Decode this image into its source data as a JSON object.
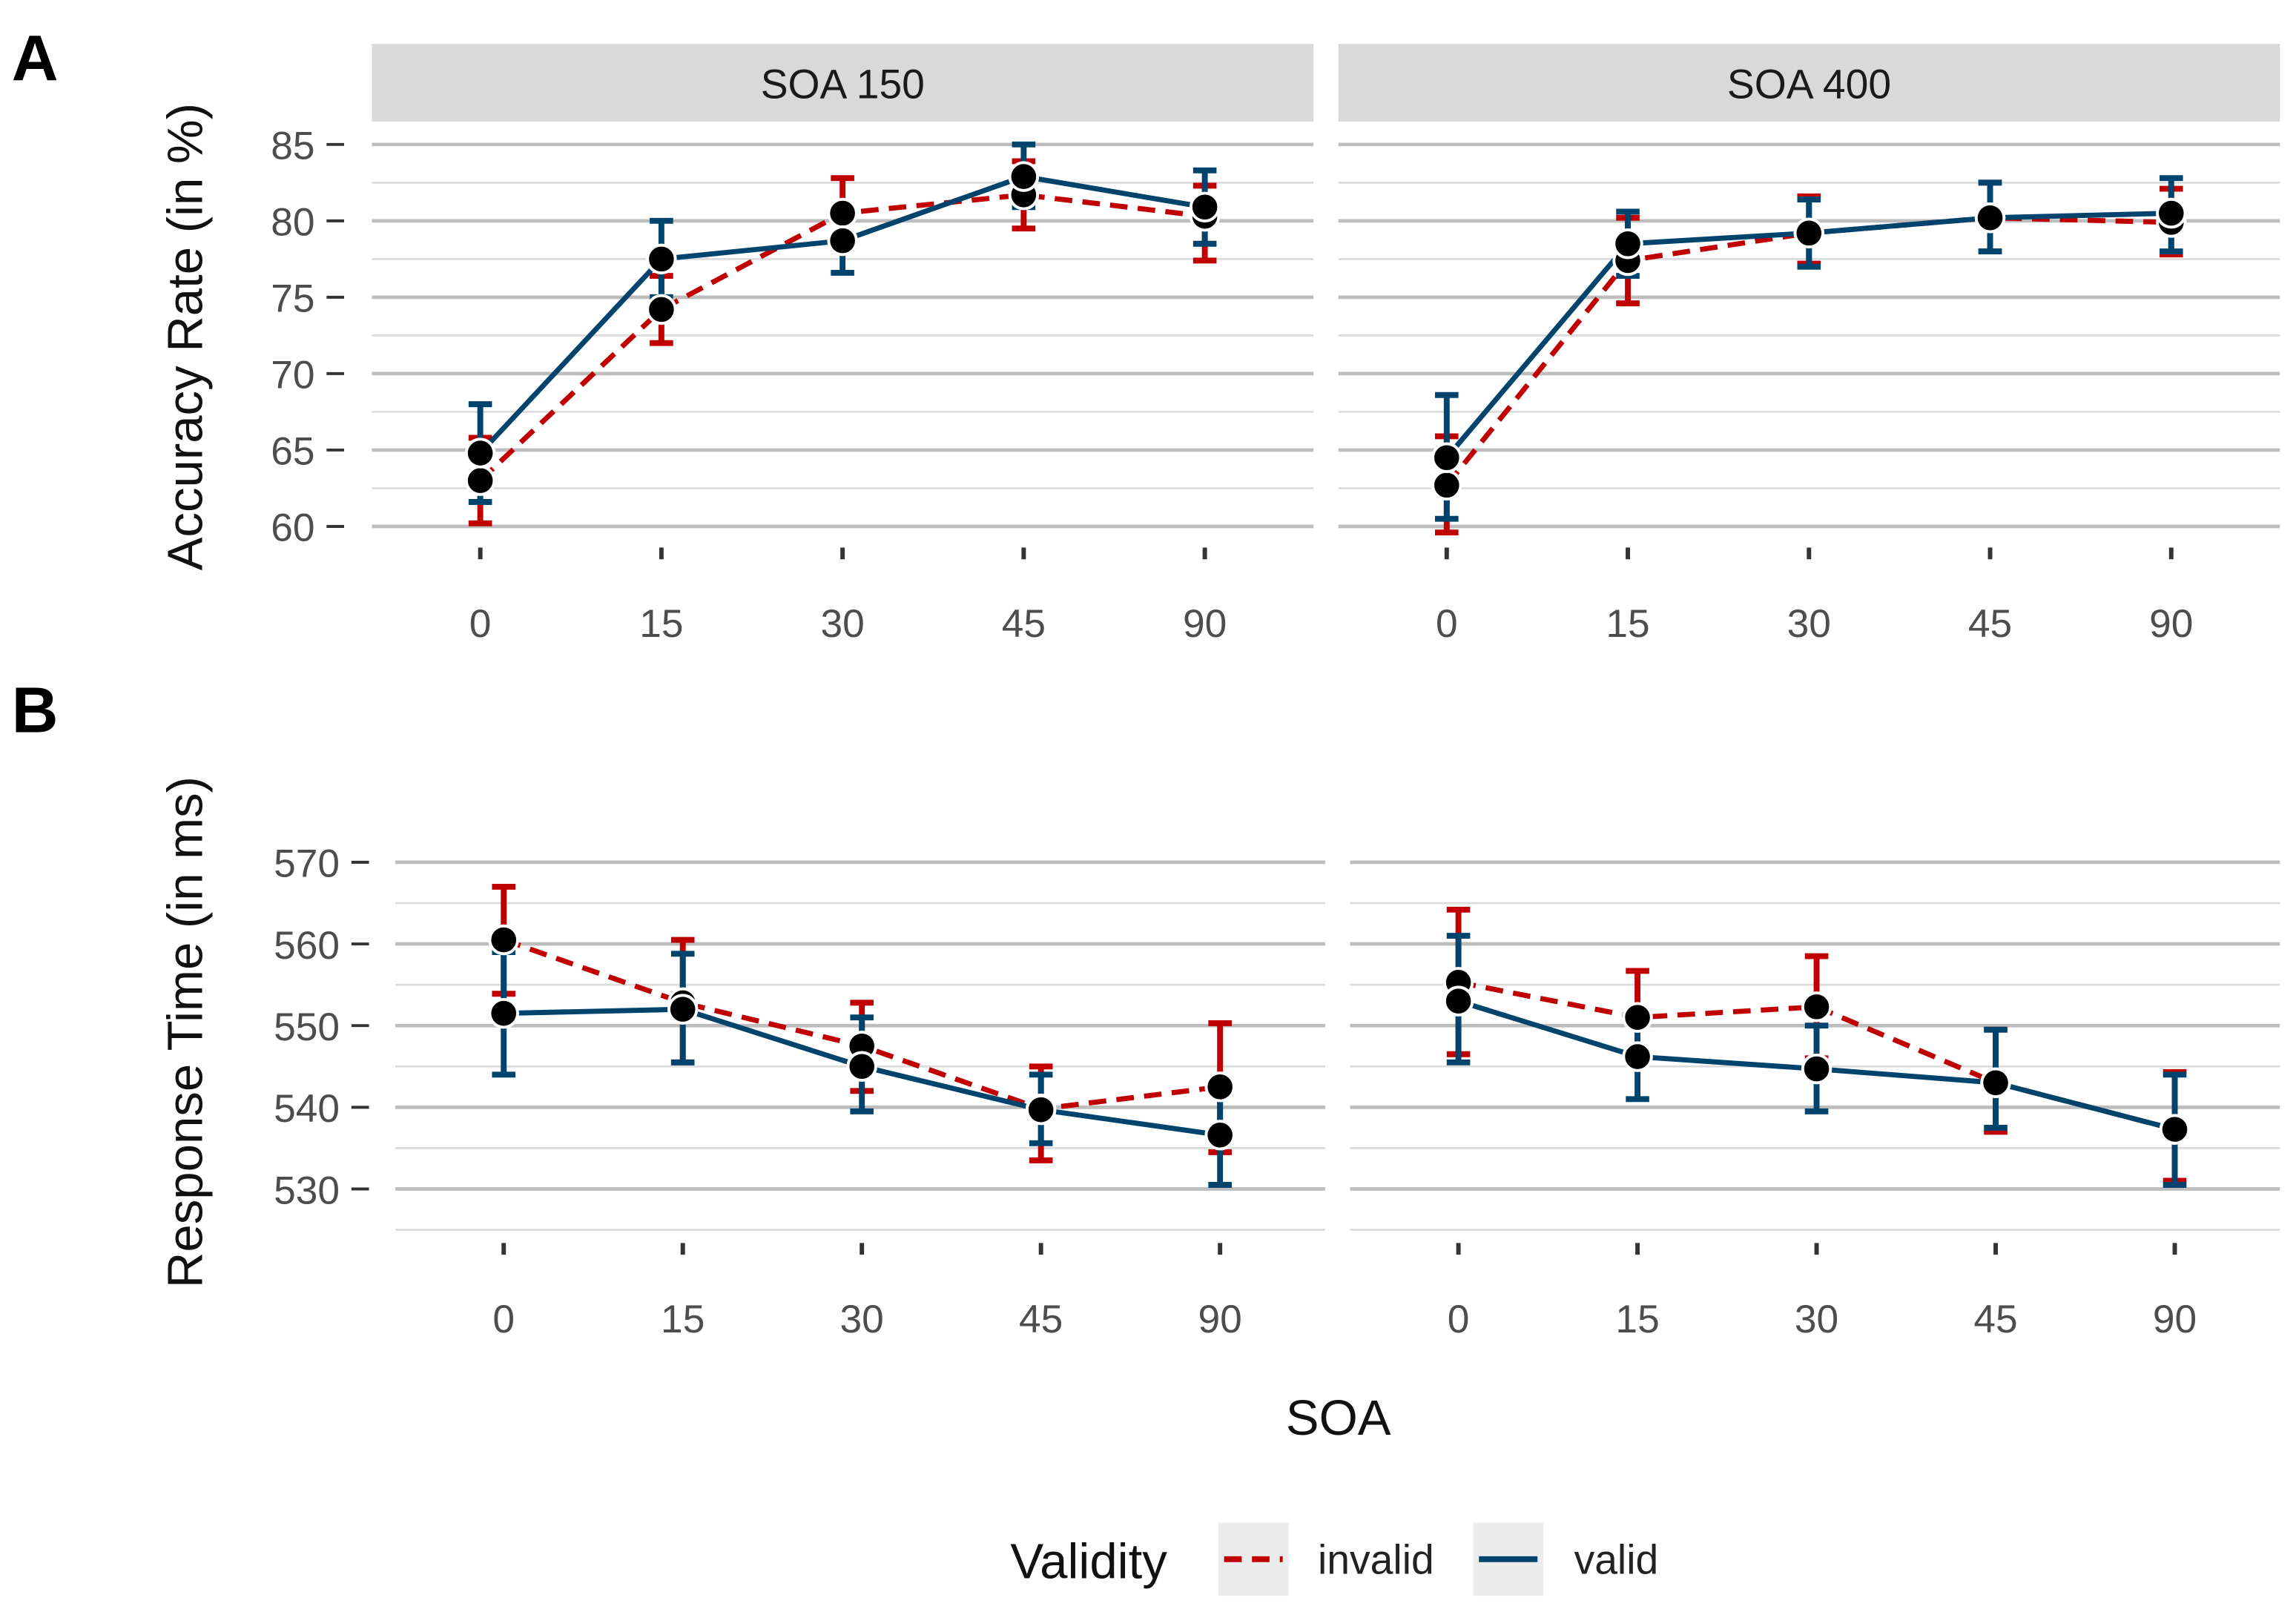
{
  "figure": {
    "panel_letters": [
      "A",
      "B"
    ],
    "xlabel": "SOA",
    "legend": {
      "title": "Validity",
      "placement": "bottom",
      "entries": [
        {
          "name": "invalid",
          "color": "#c00000",
          "dash": "dashed"
        },
        {
          "name": "valid",
          "color": "#00446e",
          "dash": "solid"
        }
      ]
    }
  },
  "chart_data": [
    {
      "type": "line",
      "panel": "A",
      "ylabel": "Accuracy Rate (in %)",
      "ylim": [
        59,
        86.5
      ],
      "yticks": [
        60,
        65,
        70,
        75,
        80,
        85
      ],
      "categories": [
        "0",
        "15",
        "30",
        "45",
        "90"
      ],
      "grid": true,
      "facets": [
        {
          "label": "SOA 150",
          "series": [
            {
              "name": "invalid",
              "mean": [
                63.0,
                74.2,
                80.5,
                81.7,
                80.3
              ],
              "lo": [
                60.2,
                72.0,
                78.2,
                79.5,
                77.4
              ],
              "hi": [
                65.8,
                76.4,
                82.8,
                83.9,
                82.3
              ]
            },
            {
              "name": "valid",
              "mean": [
                64.8,
                77.5,
                78.7,
                82.9,
                80.9
              ],
              "lo": [
                61.6,
                75.0,
                76.6,
                80.9,
                78.5
              ],
              "hi": [
                68.0,
                80.0,
                80.9,
                85.0,
                83.3
              ]
            }
          ]
        },
        {
          "label": "SOA 400",
          "series": [
            {
              "name": "invalid",
              "mean": [
                62.7,
                77.4,
                79.2,
                80.2,
                79.9
              ],
              "lo": [
                59.6,
                74.6,
                77.2,
                78.0,
                77.8
              ],
              "hi": [
                65.9,
                80.2,
                81.6,
                82.5,
                82.1
              ]
            },
            {
              "name": "valid",
              "mean": [
                64.5,
                78.5,
                79.2,
                80.2,
                80.5
              ],
              "lo": [
                60.5,
                76.4,
                77.0,
                78.0,
                78.0
              ],
              "hi": [
                68.6,
                80.6,
                81.4,
                82.5,
                82.8
              ]
            }
          ]
        }
      ]
    },
    {
      "type": "line",
      "panel": "B",
      "ylabel": "Response Time (in ms)",
      "ylim": [
        525,
        572.5
      ],
      "yticks": [
        530,
        540,
        550,
        560,
        570
      ],
      "categories": [
        "0",
        "15",
        "30",
        "45",
        "90"
      ],
      "grid": true,
      "facets": [
        {
          "series": [
            {
              "name": "invalid",
              "mean": [
                560.5,
                552.8,
                547.5,
                539.8,
                542.5
              ],
              "lo": [
                553.9,
                545.5,
                542.0,
                533.5,
                534.5
              ],
              "hi": [
                567.0,
                560.5,
                552.8,
                545.0,
                550.3
              ]
            },
            {
              "name": "valid",
              "mean": [
                551.5,
                552.0,
                545.0,
                539.7,
                536.6
              ],
              "lo": [
                544.0,
                545.5,
                539.5,
                535.6,
                530.5
              ],
              "hi": [
                559.0,
                558.8,
                551.0,
                544.0,
                542.5
              ]
            }
          ]
        },
        {
          "series": [
            {
              "name": "invalid",
              "mean": [
                555.3,
                551.0,
                552.3,
                543.0,
                537.3
              ],
              "lo": [
                546.5,
                545.5,
                546.0,
                537.0,
                531.0
              ],
              "hi": [
                564.2,
                556.7,
                558.5,
                549.5,
                544.3
              ]
            },
            {
              "name": "valid",
              "mean": [
                553.0,
                546.2,
                544.7,
                543.0,
                537.3
              ],
              "lo": [
                545.5,
                541.0,
                539.5,
                537.5,
                530.5
              ],
              "hi": [
                561.0,
                551.5,
                550.0,
                549.5,
                544.0
              ]
            }
          ]
        }
      ]
    }
  ]
}
